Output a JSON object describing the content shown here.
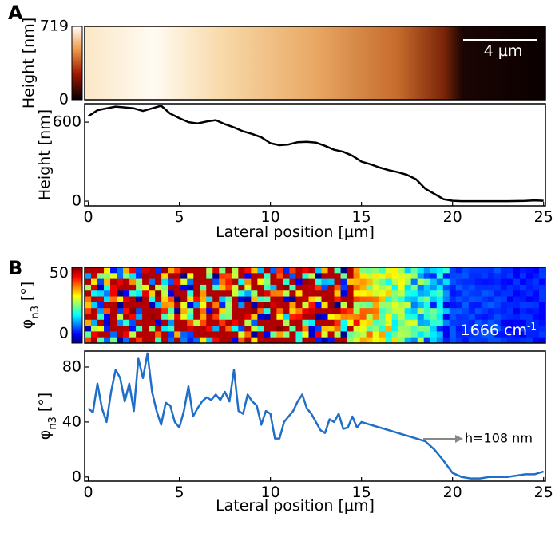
{
  "chart_data": [
    {
      "type": "image",
      "panel": "A",
      "colorbar_label": "Height [nm]",
      "clim": [
        0,
        719
      ],
      "cticks": [
        0,
        719
      ],
      "scale_bar": "4 µm",
      "colormap": "afmhot"
    },
    {
      "type": "line",
      "ylabel": "Height [nm]",
      "xlabel": "Lateral position [µm]",
      "xlim": [
        -0.2,
        25.1
      ],
      "xticks": [
        0,
        5,
        10,
        15,
        20,
        25
      ],
      "ylim": [
        -36,
        740
      ],
      "yticks": [
        0,
        600
      ],
      "series": [
        {
          "color": "#000000",
          "x": [
            0,
            0.5,
            1,
            1.5,
            2,
            2.5,
            3,
            3.5,
            4,
            4.5,
            5,
            5.5,
            6,
            6.5,
            7,
            7.5,
            8,
            8.5,
            9,
            9.5,
            10,
            10.5,
            11,
            11.5,
            12,
            12.5,
            13,
            13.5,
            14,
            14.5,
            15,
            15.5,
            16,
            16.5,
            17,
            17.5,
            18,
            18.5,
            19,
            19.5,
            20,
            20.5,
            21,
            22,
            23,
            24,
            24.5,
            25
          ],
          "values": [
            645,
            690,
            705,
            718,
            712,
            705,
            685,
            705,
            725,
            665,
            630,
            600,
            590,
            605,
            615,
            585,
            560,
            530,
            510,
            485,
            440,
            425,
            430,
            448,
            450,
            445,
            420,
            390,
            375,
            345,
            300,
            280,
            255,
            235,
            220,
            200,
            165,
            95,
            55,
            15,
            3,
            0,
            0,
            0,
            0,
            2,
            6,
            3
          ]
        }
      ]
    },
    {
      "type": "image",
      "panel": "B",
      "colorbar_label": {
        "symbol": "φ",
        "subscript": "n3",
        "unit": "[°]"
      },
      "clim": [
        -8,
        55
      ],
      "cticks": [
        0,
        50
      ],
      "wavenumber": {
        "text": "1666 cm",
        "superscript": "-1"
      },
      "colormap": "jet"
    },
    {
      "type": "line",
      "ylabel": {
        "symbol": "φ",
        "subscript": "n3",
        "unit": "[°]"
      },
      "xlabel": "Lateral position [µm]",
      "xlim": [
        -0.2,
        25.1
      ],
      "xticks": [
        0,
        5,
        10,
        15,
        20,
        25
      ],
      "ylim": [
        -3,
        91.6
      ],
      "yticks": [
        0,
        40,
        80
      ],
      "annotation": "h=108 nm",
      "series": [
        {
          "color": "#1f6fc8",
          "x": [
            0,
            0.25,
            0.5,
            0.75,
            1,
            1.25,
            1.5,
            1.75,
            2,
            2.25,
            2.5,
            2.75,
            3,
            3.25,
            3.5,
            3.75,
            4,
            4.25,
            4.5,
            4.75,
            5,
            5.25,
            5.5,
            5.75,
            6,
            6.25,
            6.5,
            6.75,
            7,
            7.25,
            7.5,
            7.75,
            8,
            8.25,
            8.5,
            8.75,
            9,
            9.25,
            9.5,
            9.75,
            10,
            10.25,
            10.5,
            10.75,
            11,
            11.25,
            11.5,
            11.75,
            12,
            12.25,
            12.5,
            12.75,
            13,
            13.25,
            13.5,
            13.75,
            14,
            14.25,
            14.5,
            14.75,
            15,
            15.5,
            16,
            16.5,
            17,
            17.5,
            18,
            18.5,
            19,
            19.5,
            20,
            20.5,
            21,
            21.5,
            22,
            22.5,
            23,
            23.5,
            24,
            24.5,
            25
          ],
          "values": [
            50,
            47,
            68,
            50,
            40,
            62,
            78,
            72,
            55,
            68,
            48,
            86,
            72,
            90,
            62,
            48,
            38,
            54,
            52,
            40,
            36,
            48,
            66,
            44,
            50,
            55,
            58,
            56,
            60,
            56,
            62,
            55,
            78,
            48,
            46,
            60,
            55,
            52,
            38,
            48,
            46,
            28,
            28,
            40,
            44,
            48,
            55,
            60,
            50,
            46,
            40,
            34,
            32,
            42,
            40,
            46,
            35,
            36,
            44,
            36,
            40,
            38,
            36,
            34,
            32,
            30,
            28,
            26,
            20,
            12,
            3,
            0,
            -1,
            -1,
            0,
            0,
            0,
            1,
            2,
            2,
            4
          ]
        }
      ]
    }
  ]
}
